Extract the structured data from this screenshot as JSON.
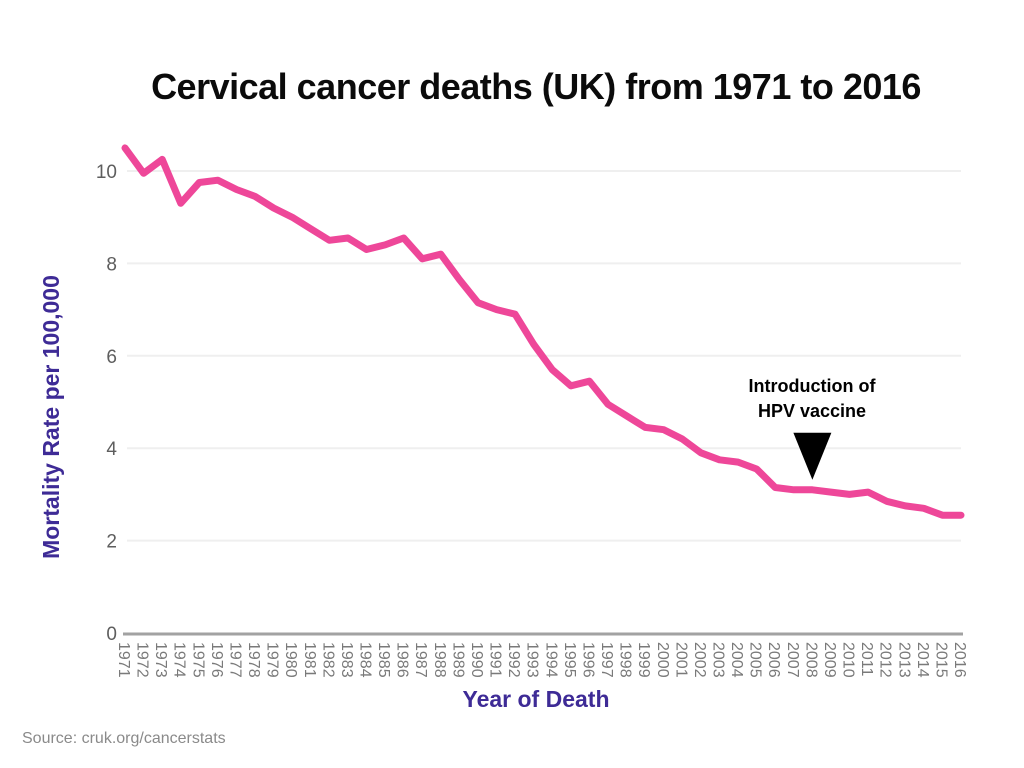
{
  "slide": {
    "title": "Cervical cancer deaths (UK) from 1971 to 2016",
    "source": "Source: cruk.org/cancerstats"
  },
  "chart_data": {
    "type": "line",
    "title": "Cervical cancer deaths (UK) from 1971 to 2016",
    "xlabel": "Year of Death",
    "ylabel": "Mortality Rate per 100,000",
    "x": [
      "1971",
      "1972",
      "1973",
      "1974",
      "1975",
      "1976",
      "1977",
      "1978",
      "1979",
      "1980",
      "1981",
      "1982",
      "1983",
      "1984",
      "1985",
      "1986",
      "1987",
      "1988",
      "1989",
      "1990",
      "1991",
      "1992",
      "1993",
      "1994",
      "1995",
      "1996",
      "1997",
      "1998",
      "1999",
      "2000",
      "2001",
      "2002",
      "2003",
      "2004",
      "2005",
      "2006",
      "2007",
      "2008",
      "2009",
      "2010",
      "2011",
      "2012",
      "2013",
      "2014",
      "2015",
      "2016"
    ],
    "values": [
      10.5,
      9.95,
      10.25,
      9.3,
      9.75,
      9.8,
      9.6,
      9.45,
      9.2,
      9.0,
      8.75,
      8.5,
      8.55,
      8.3,
      8.4,
      8.55,
      8.1,
      8.2,
      7.65,
      7.15,
      7.0,
      6.9,
      6.25,
      5.7,
      5.35,
      5.45,
      4.95,
      4.7,
      4.45,
      4.4,
      4.2,
      3.9,
      3.75,
      3.7,
      3.55,
      3.15,
      3.1,
      3.1,
      3.05,
      3.0,
      3.05,
      2.85,
      2.75,
      2.7,
      2.55,
      2.55
    ],
    "yticks": [
      "0",
      "2",
      "4",
      "6",
      "8",
      "10"
    ],
    "ylim": [
      0,
      10.8
    ],
    "grid": "horizontal-light",
    "legend": "none",
    "annotation": {
      "line1": "Introduction of",
      "line2": "HPV vaccine",
      "year": "2008",
      "marker": "down-triangle"
    },
    "colors": {
      "line": "#EE4799",
      "axis": "#A2A2A2",
      "grid": "#EFEFEF",
      "ytick_text": "#5E5E5E",
      "xtick_text": "#7A7A7A",
      "axis_title": "#3E2B96",
      "annotation_text": "#000000",
      "arrow": "#000000"
    }
  }
}
